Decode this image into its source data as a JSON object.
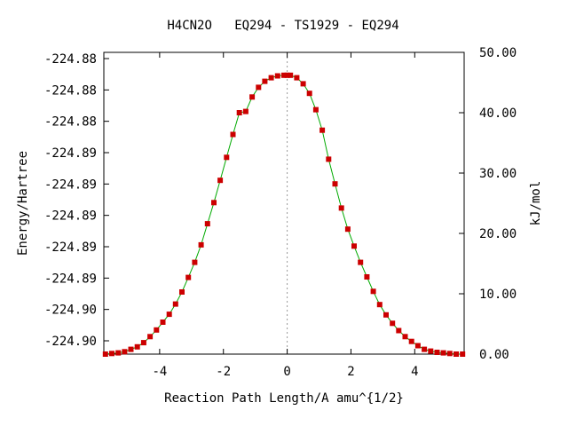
{
  "chart_data": {
    "type": "scatter",
    "title": "H4CN2O   EQ294 - TS1929 - EQ294",
    "xlabel": "Reaction Path Length/A amu^{1/2}",
    "ylabel_left": "Energy/Hartree",
    "ylabel_right": "kJ/mol",
    "x_ticks": [
      "-4",
      "-2",
      "0",
      "2",
      "4"
    ],
    "x_tick_values": [
      -4,
      -2,
      0,
      2,
      4
    ],
    "xlim": [
      -5.75,
      5.55
    ],
    "left_tick_labels": [
      "-224.88",
      "-224.88",
      "-224.88",
      "-224.89",
      "-224.89",
      "-224.89",
      "-224.89",
      "-224.89",
      "-224.90",
      "-224.90"
    ],
    "right_tick_labels": [
      "50.00",
      "40.00",
      "30.00",
      "20.00",
      "10.00",
      "0.00"
    ],
    "right_tick_values": [
      50,
      40,
      30,
      20,
      10,
      0
    ],
    "right_ylim": [
      0,
      50
    ],
    "grid": false,
    "vertical_reference_x": 0,
    "marker_color": "#cc0000",
    "line_color": "#00aa00",
    "series": [
      {
        "x": [
          -5.7,
          -5.5,
          -5.3,
          -5.1,
          -4.9,
          -4.7,
          -4.5,
          -4.3,
          -4.1,
          -3.9,
          -3.7,
          -3.5,
          -3.3,
          -3.1,
          -2.9,
          -2.7,
          -2.5,
          -2.3,
          -2.1,
          -1.9,
          -1.7,
          -1.5,
          -1.3,
          -1.1,
          -0.9,
          -0.7,
          -0.5,
          -0.3,
          -0.1,
          0.0,
          0.1,
          0.3,
          0.5,
          0.7,
          0.9,
          1.1,
          1.3,
          1.5,
          1.7,
          1.9,
          2.1,
          2.3,
          2.5,
          2.7,
          2.9,
          3.1,
          3.3,
          3.5,
          3.7,
          3.9,
          4.1,
          4.3,
          4.5,
          4.7,
          4.9,
          5.1,
          5.3,
          5.5
        ],
        "y": [
          0.0,
          0.1,
          0.2,
          0.4,
          0.8,
          1.2,
          1.9,
          2.9,
          4.0,
          5.3,
          6.6,
          8.3,
          10.3,
          12.7,
          15.2,
          18.1,
          21.6,
          25.1,
          28.8,
          32.6,
          36.4,
          40.0,
          40.2,
          42.6,
          44.2,
          45.2,
          45.8,
          46.1,
          46.2,
          46.2,
          46.2,
          45.8,
          44.8,
          43.2,
          40.5,
          37.1,
          32.3,
          28.2,
          24.2,
          20.7,
          17.9,
          15.2,
          12.8,
          10.4,
          8.2,
          6.5,
          5.1,
          3.9,
          2.9,
          2.1,
          1.4,
          0.8,
          0.5,
          0.3,
          0.2,
          0.1,
          0.0,
          0.0
        ]
      }
    ]
  }
}
